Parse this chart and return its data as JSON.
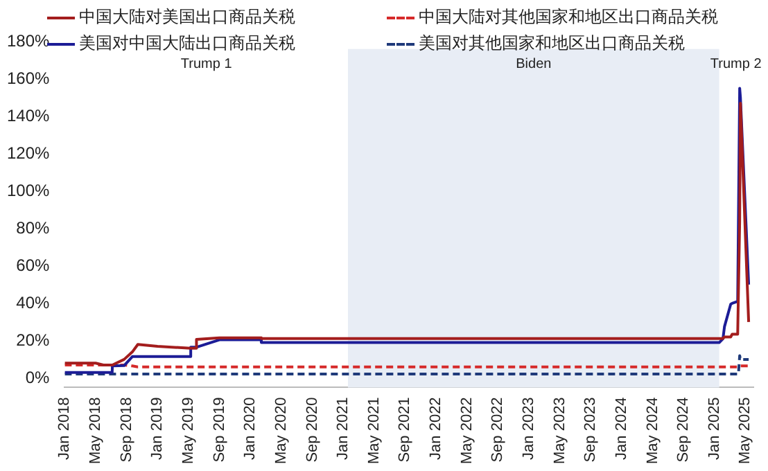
{
  "chart_data": {
    "type": "line",
    "x": [
      "2018-01",
      "2018-05",
      "2018-06",
      "2018-07-05",
      "2018-07-06",
      "2018-08-22",
      "2018-08-23",
      "2018-09-24",
      "2018-10-15",
      "2019-01-01",
      "2019-05-09",
      "2019-05-10",
      "2019-06-01",
      "2019-06-02",
      "2019-09-01",
      "2020-02-13",
      "2020-02-14",
      "2025-01-20",
      "2025-02-04",
      "2025-02-10",
      "2025-03-04",
      "2025-03-10",
      "2025-04-01",
      "2025-04-04",
      "2025-04-09",
      "2025-04-12",
      "2025-05-14"
    ],
    "series": [
      {
        "name": "中国大陆对美国出口商品关税",
        "color": "#a31d1d",
        "line_style": "solid",
        "values": [
          8,
          8,
          7,
          7,
          7,
          10,
          10,
          14,
          18,
          17,
          16,
          16,
          16,
          20.7,
          21.5,
          21.5,
          21.2,
          21.2,
          21.2,
          22,
          22,
          23.5,
          23.5,
          23.5,
          84,
          147,
          30
        ]
      },
      {
        "name": "美国对中国大陆出口商品关税",
        "color": "#1c1c96",
        "line_style": "solid",
        "values": [
          3,
          3,
          3,
          3,
          6.5,
          6.7,
          6.7,
          11.5,
          11.5,
          11.5,
          11.5,
          16.5,
          16.5,
          16.5,
          20.5,
          20.5,
          19,
          19,
          21,
          27.5,
          39.5,
          40,
          41,
          41,
          155,
          150,
          50
        ]
      },
      {
        "name": "中国大陆对其他国家和地区出口商品关税",
        "color": "#d62a2a",
        "line_style": "dashed",
        "values": [
          7,
          7,
          7,
          7,
          7,
          7,
          7,
          6.5,
          6,
          6,
          6,
          6,
          6,
          6,
          6,
          6,
          6,
          6,
          6,
          6,
          6,
          6,
          6,
          6,
          6.5,
          6.5,
          6.5
        ]
      },
      {
        "name": "美国对其他国家和地区出口商品关税",
        "color": "#1f3a7a",
        "line_style": "dashed",
        "values": [
          2.2,
          2.2,
          2.2,
          2.2,
          2.2,
          2.2,
          2.2,
          2.2,
          2.2,
          2.2,
          2.2,
          2.2,
          2.2,
          2.2,
          2.2,
          2.2,
          2.2,
          2.2,
          2.2,
          2.2,
          2.2,
          2.2,
          2.2,
          2.2,
          12,
          10,
          10
        ]
      }
    ],
    "xlim": [
      "2018-01",
      "2025-06"
    ],
    "xticks": [
      {
        "value": "2018-01",
        "label": "Jan 2018"
      },
      {
        "value": "2018-05",
        "label": "May 2018"
      },
      {
        "value": "2018-09",
        "label": "Sep 2018"
      },
      {
        "value": "2019-01",
        "label": "Jan 2019"
      },
      {
        "value": "2019-05",
        "label": "May 2019"
      },
      {
        "value": "2019-09",
        "label": "Sep 2019"
      },
      {
        "value": "2020-01",
        "label": "Jan 2020"
      },
      {
        "value": "2020-05",
        "label": "May 2020"
      },
      {
        "value": "2020-09",
        "label": "Sep 2020"
      },
      {
        "value": "2021-01",
        "label": "Jan 2021"
      },
      {
        "value": "2021-05",
        "label": "May 2021"
      },
      {
        "value": "2021-09",
        "label": "Sep 2021"
      },
      {
        "value": "2022-01",
        "label": "Jan 2022"
      },
      {
        "value": "2022-05",
        "label": "May 2022"
      },
      {
        "value": "2022-09",
        "label": "Sep 2022"
      },
      {
        "value": "2023-01",
        "label": "Jan 2023"
      },
      {
        "value": "2023-05",
        "label": "May 2023"
      },
      {
        "value": "2023-09",
        "label": "Sep 2023"
      },
      {
        "value": "2024-01",
        "label": "Jan 2024"
      },
      {
        "value": "2024-05",
        "label": "May 2024"
      },
      {
        "value": "2024-09",
        "label": "Sep 2024"
      },
      {
        "value": "2025-01",
        "label": "Jan 2025"
      },
      {
        "value": "2025-05",
        "label": "May 2025"
      }
    ],
    "ylim": [
      -5,
      180
    ],
    "yticks": [
      {
        "value": 0,
        "label": "0%"
      },
      {
        "value": 20,
        "label": "20%"
      },
      {
        "value": 40,
        "label": "40%"
      },
      {
        "value": 60,
        "label": "60%"
      },
      {
        "value": 80,
        "label": "80%"
      },
      {
        "value": 100,
        "label": "100%"
      },
      {
        "value": 120,
        "label": "120%"
      },
      {
        "value": 140,
        "label": "140%"
      },
      {
        "value": 160,
        "label": "160%"
      },
      {
        "value": 180,
        "label": "180%"
      }
    ],
    "bands": [
      {
        "axis": "x",
        "from": "2021-01-20",
        "to": "2025-01-20",
        "label": "Biden",
        "color": "#e8edf5"
      }
    ],
    "annotations": [
      "Trump 1",
      "Trump 2"
    ],
    "grid": false,
    "legend": "top",
    "marker": "none"
  }
}
